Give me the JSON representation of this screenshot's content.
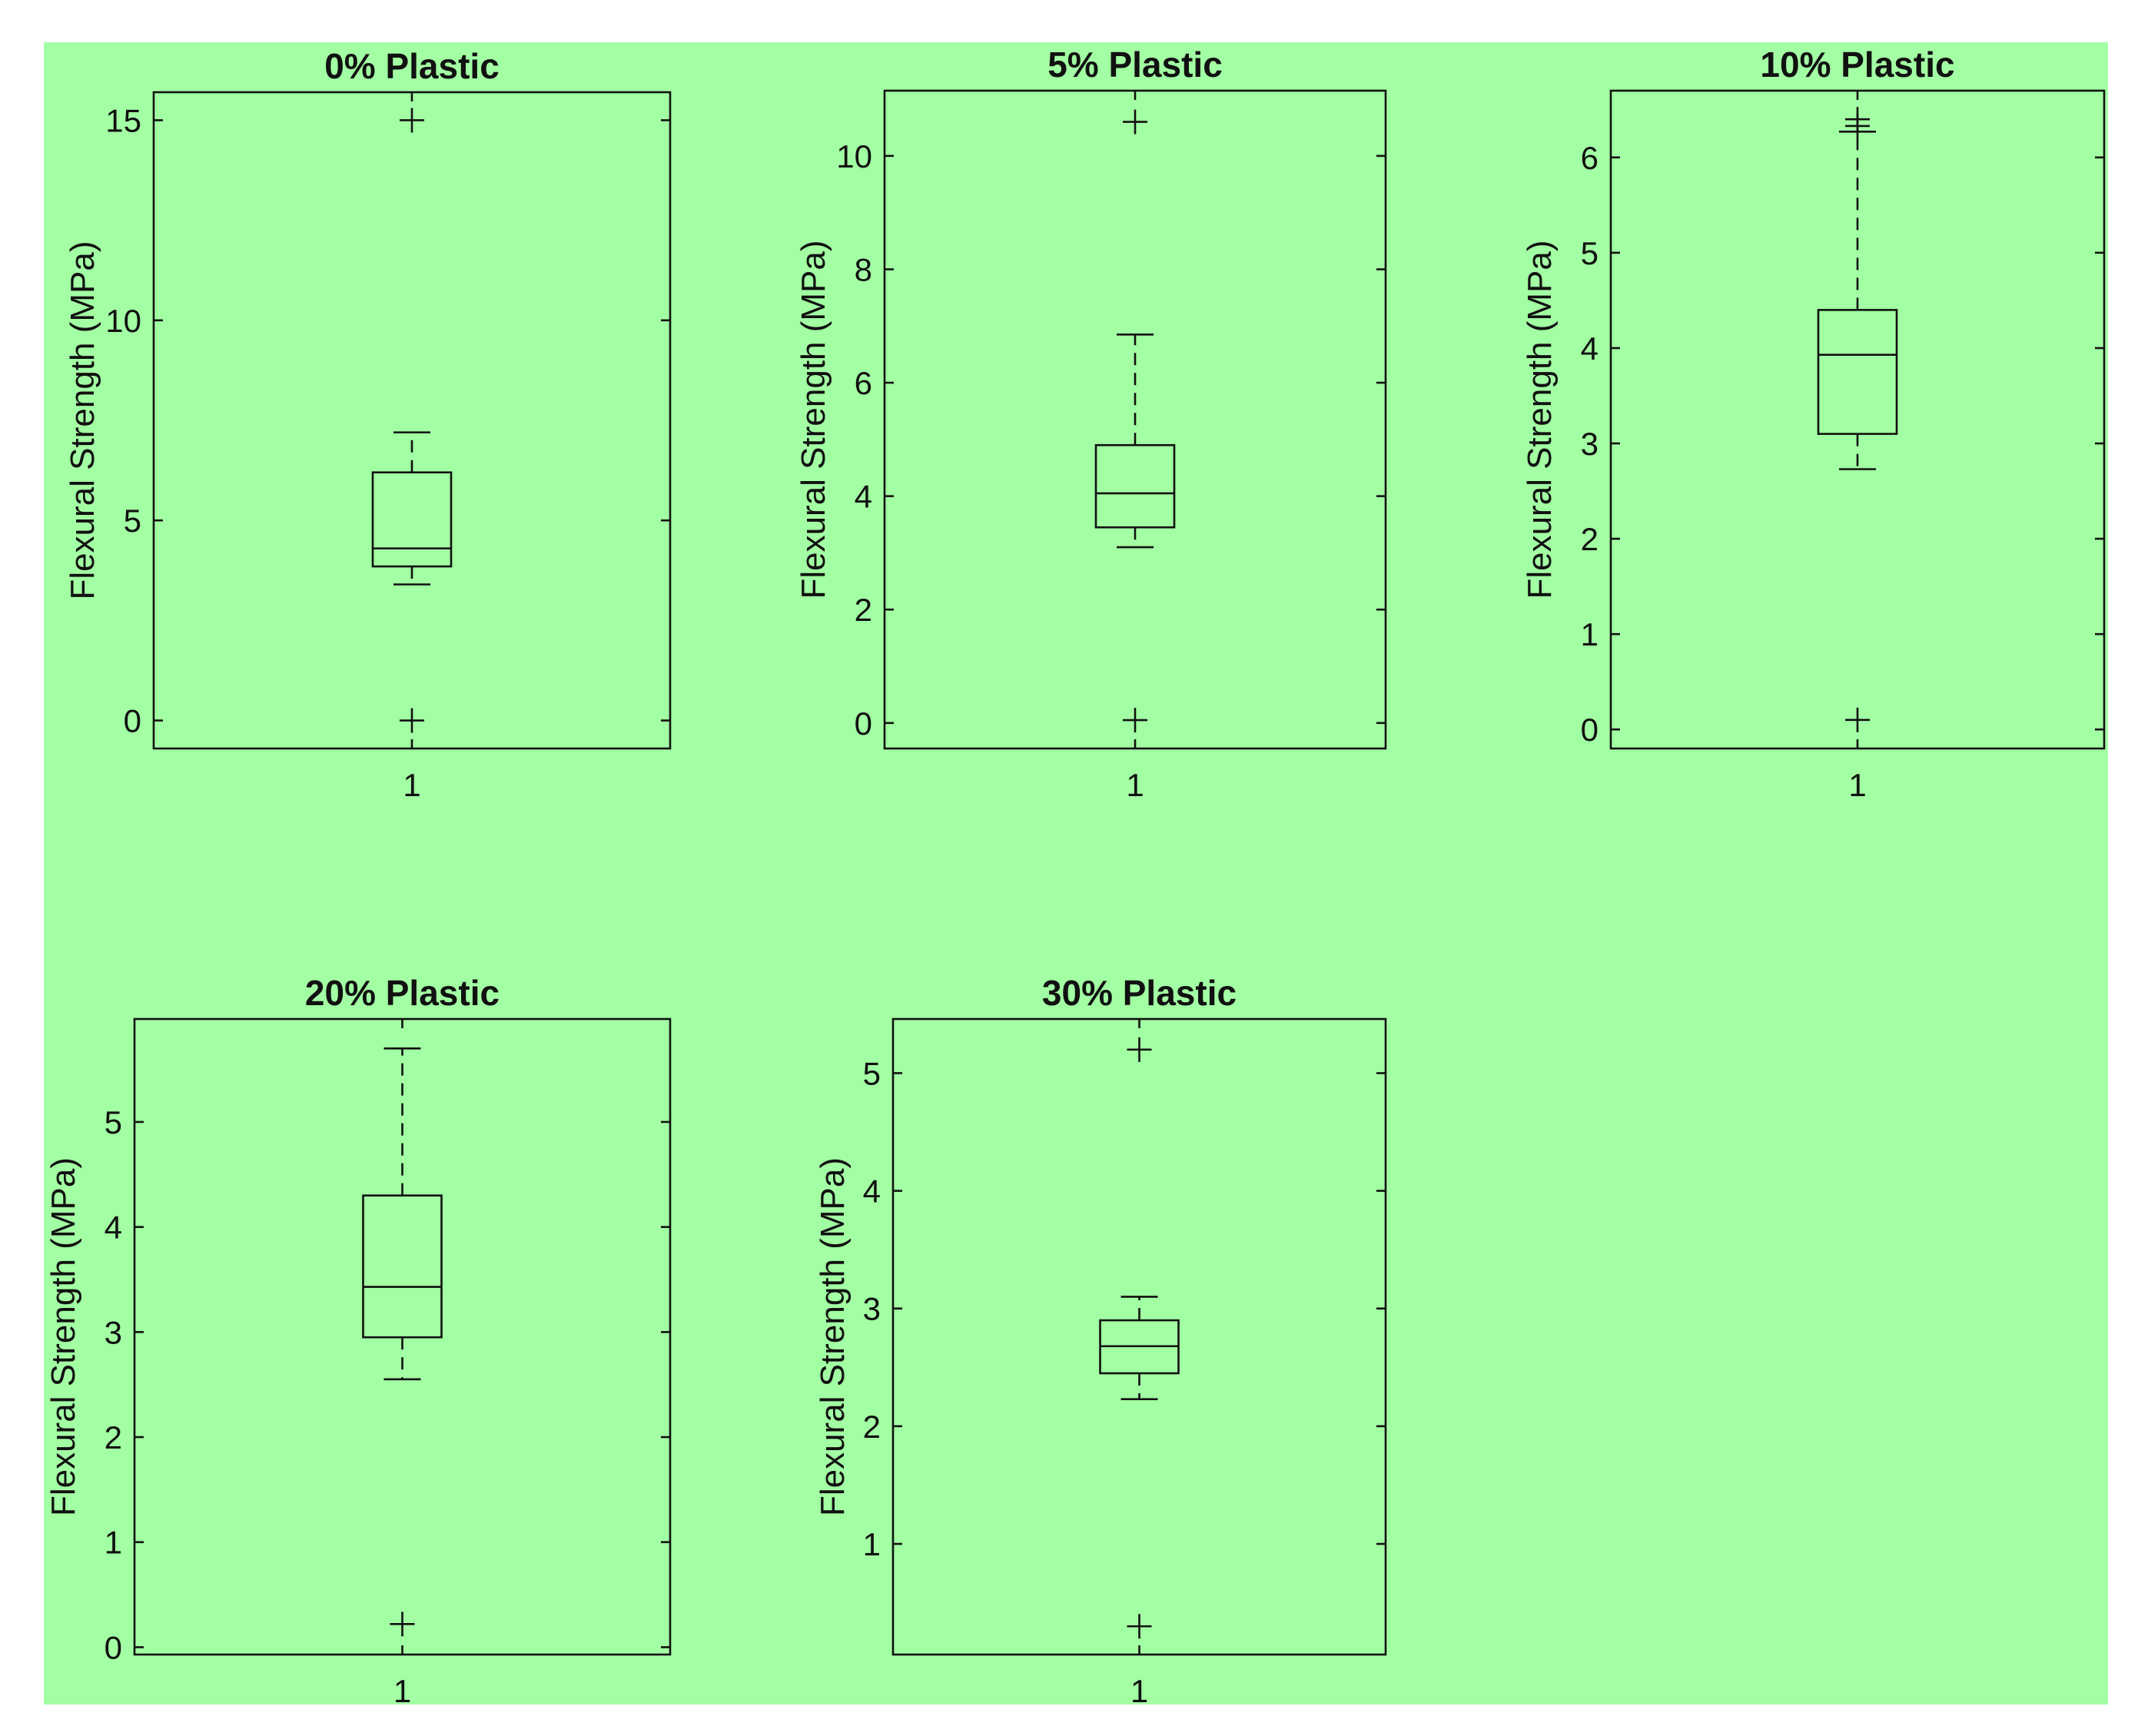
{
  "figure": {
    "background": "#a3ffa3"
  },
  "chart_data": [
    {
      "type": "boxplot",
      "title": "0% Plastic",
      "ylabel": "Flexural Strength (MPa)",
      "xticklabels": [
        "1"
      ],
      "yticks": [
        0,
        5,
        10,
        15
      ],
      "ylim": [
        -0.7,
        15.7
      ],
      "box": {
        "q1": 3.85,
        "median": 4.3,
        "q3": 6.2,
        "whisker_low": 3.4,
        "whisker_high": 7.2
      },
      "outliers": [
        15.0,
        0.0
      ]
    },
    {
      "type": "boxplot",
      "title": "5% Plastic",
      "ylabel": "Flexural Strength (MPa)",
      "xticklabels": [
        "1"
      ],
      "yticks": [
        0,
        2,
        4,
        6,
        8,
        10
      ],
      "ylim": [
        -0.45,
        11.15
      ],
      "box": {
        "q1": 3.45,
        "median": 4.05,
        "q3": 4.9,
        "whisker_low": 3.1,
        "whisker_high": 6.85
      },
      "outliers": [
        10.6,
        0.05
      ]
    },
    {
      "type": "boxplot",
      "title": "10% Plastic",
      "ylabel": "Flexural Strength (MPa)",
      "xticklabels": [
        "1"
      ],
      "yticks": [
        0,
        1,
        2,
        3,
        4,
        5,
        6
      ],
      "ylim": [
        -0.2,
        6.7
      ],
      "box": {
        "q1": 3.1,
        "median": 3.93,
        "q3": 4.4,
        "whisker_low": 2.73,
        "whisker_high": 6.27
      },
      "outliers": [
        6.4,
        6.33,
        0.1
      ]
    },
    {
      "type": "boxplot",
      "title": "20% Plastic",
      "ylabel": "Flexural Strength (MPa)",
      "xticklabels": [
        "1"
      ],
      "yticks": [
        0,
        1,
        2,
        3,
        4,
        5
      ],
      "ylim": [
        -0.07,
        5.98
      ],
      "box": {
        "q1": 2.95,
        "median": 3.43,
        "q3": 4.3,
        "whisker_low": 2.55,
        "whisker_high": 5.7
      },
      "outliers": [
        0.22
      ]
    },
    {
      "type": "boxplot",
      "title": "30% Plastic",
      "ylabel": "Flexural Strength (MPa)",
      "xticklabels": [
        "1"
      ],
      "yticks": [
        1,
        2,
        3,
        4,
        5
      ],
      "ylim": [
        0.06,
        5.46
      ],
      "box": {
        "q1": 2.45,
        "median": 2.68,
        "q3": 2.9,
        "whisker_low": 2.23,
        "whisker_high": 3.1
      },
      "outliers": [
        5.2,
        0.3
      ]
    }
  ]
}
